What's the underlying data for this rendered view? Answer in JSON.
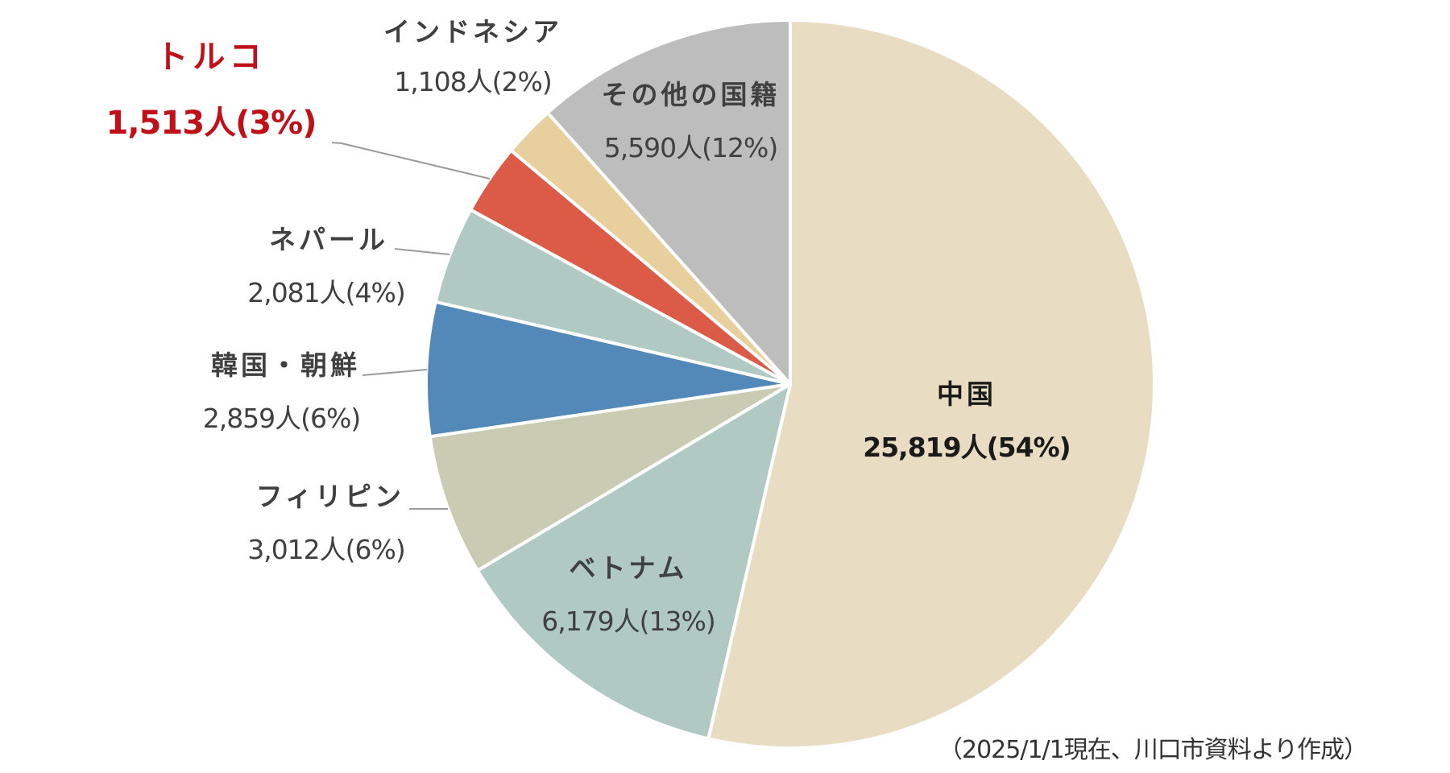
{
  "chart_data": {
    "type": "pie",
    "title": "",
    "start_angle_deg": 0,
    "direction": "clockwise",
    "slices": [
      {
        "key": "china",
        "label": "中国",
        "value": 25819,
        "percent": 54,
        "value_label": "25,819人(54%)",
        "color": "#E8DCC2"
      },
      {
        "key": "vietnam",
        "label": "ベトナム",
        "value": 6179,
        "percent": 13,
        "value_label": "6,179人(13%)",
        "color": "#B0CAC3"
      },
      {
        "key": "philippines",
        "label": "フィリピン",
        "value": 3012,
        "percent": 6,
        "value_label": "3,012人(6%)",
        "color": "#C9CCB3"
      },
      {
        "key": "korea",
        "label": "韓国・朝鮮",
        "value": 2859,
        "percent": 6,
        "value_label": "2,859人(6%)",
        "color": "#5289B8"
      },
      {
        "key": "nepal",
        "label": "ネパール",
        "value": 2081,
        "percent": 4,
        "value_label": "2,081人(4%)",
        "color": "#B0CAC3"
      },
      {
        "key": "turkey",
        "label": "トルコ",
        "value": 1513,
        "percent": 3,
        "value_label": "1,513人(3%)",
        "color": "#DB5B46"
      },
      {
        "key": "indonesia",
        "label": "インドネシア",
        "value": 1108,
        "percent": 2,
        "value_label": "1,108人(2%)",
        "color": "#E8D09E"
      },
      {
        "key": "others",
        "label": "その他の国籍",
        "value": 5590,
        "percent": 12,
        "value_label": "5,590人(12%)",
        "color": "#BDBDBD"
      }
    ],
    "highlight": "turkey",
    "highlight_color": "#C0101A",
    "source_note": "（2025/1/1現在、川口市資料より作成）"
  },
  "labels": {
    "china": {
      "name": "中国",
      "value": "25,819人(54%)"
    },
    "vietnam": {
      "name": "ベトナム",
      "value": "6,179人(13%)"
    },
    "philippines": {
      "name": "フィリピン",
      "value": "3,012人(6%)"
    },
    "korea": {
      "name": "韓国・朝鮮",
      "value": "2,859人(6%)"
    },
    "nepal": {
      "name": "ネパール",
      "value": "2,081人(4%)"
    },
    "turkey": {
      "name": "トルコ",
      "value": "1,513人(3%)"
    },
    "indonesia": {
      "name": "インドネシア",
      "value": "1,108人(2%)"
    },
    "others": {
      "name": "その他の国籍",
      "value": "5,590人(12%)"
    }
  },
  "source_note": "（2025/1/1現在、川口市資料より作成）"
}
